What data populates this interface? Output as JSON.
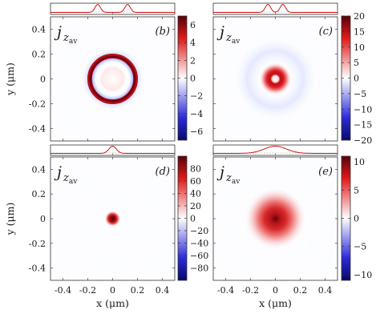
{
  "chart_data": [
    {
      "type": "heatmap",
      "panel_label": "(b)",
      "quantity": "j",
      "quantity_subscript": "z av",
      "pattern": "ring",
      "ring_radius_um": 0.09,
      "ring_width_um": 0.018,
      "colorbar": {
        "min": -7,
        "max": 7,
        "ticks": [
          -6,
          -4,
          -2,
          0,
          2,
          4,
          6
        ]
      },
      "xlim": [
        -0.5,
        0.5
      ],
      "ylim": [
        -0.5,
        0.5
      ],
      "yticks": [
        "-0.4",
        "-0.2",
        "0",
        "0.2",
        "0.4"
      ],
      "ylabel": "y (μm)",
      "profile_peaks_um": [
        -0.12,
        0.12
      ]
    },
    {
      "type": "heatmap",
      "panel_label": "(c)",
      "quantity": "j",
      "quantity_subscript": "z av",
      "pattern": "small-ring",
      "ring_radius_um": 0.035,
      "ring_width_um": 0.02,
      "colorbar": {
        "min": -20,
        "max": 20,
        "ticks": [
          -20,
          -15,
          -10,
          -5,
          0,
          5,
          10,
          15,
          20
        ]
      },
      "xlim": [
        -0.5,
        0.5
      ],
      "ylim": [
        -0.5,
        0.5
      ],
      "profile_peaks_um": [
        -0.06,
        0.06
      ]
    },
    {
      "type": "heatmap",
      "panel_label": "(d)",
      "quantity": "j",
      "quantity_subscript": "z av",
      "pattern": "spot",
      "spot_radius_um": 0.02,
      "colorbar": {
        "min": -100,
        "max": 100,
        "ticks": [
          -80,
          -60,
          -40,
          -20,
          0,
          20,
          40,
          60,
          80
        ]
      },
      "xlim": [
        -0.5,
        0.5
      ],
      "ylim": [
        -0.5,
        0.5
      ],
      "xticks": [
        "-0.4",
        "-0.2",
        "0",
        "0.2",
        "0.4"
      ],
      "yticks": [
        "-0.4",
        "-0.2",
        "0",
        "0.2",
        "0.4"
      ],
      "xlabel": "x (μm)",
      "ylabel": "y (μm)",
      "profile_peaks_um": [
        0
      ]
    },
    {
      "type": "heatmap",
      "panel_label": "(e)",
      "quantity": "j",
      "quantity_subscript": "z av",
      "pattern": "broad-spot",
      "spot_radius_um": 0.09,
      "colorbar": {
        "min": -11,
        "max": 11,
        "ticks": [
          -10,
          -5,
          0,
          5,
          10
        ]
      },
      "xlim": [
        -0.5,
        0.5
      ],
      "ylim": [
        -0.5,
        0.5
      ],
      "xticks": [
        "-0.4",
        "-0.2",
        "0",
        "0.2",
        "0.4"
      ],
      "xlabel": "x (μm)",
      "profile_peaks_um": [
        0
      ]
    }
  ]
}
